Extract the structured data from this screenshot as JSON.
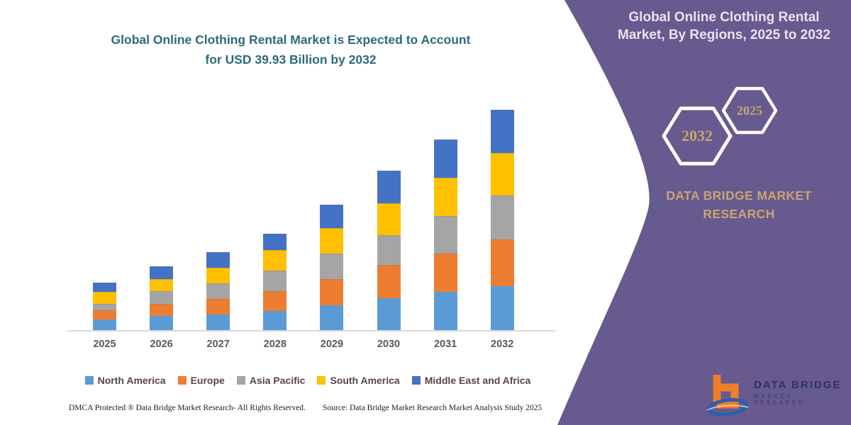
{
  "chart": {
    "title_lines": [
      "Global Online Clothing Rental Market is Expected to Account",
      "for USD 39.93 Billion by 2032"
    ]
  },
  "chart_data": {
    "type": "bar",
    "stacked": true,
    "title": "Global Online Clothing Rental Market is Expected to Account for USD 39.93 Billion by 2032",
    "unit": "USD Billion",
    "categories": [
      "2025",
      "2026",
      "2027",
      "2028",
      "2029",
      "2030",
      "2031",
      "2032"
    ],
    "series": [
      {
        "name": "North America",
        "color": "#5B9BD5",
        "values": [
          1.9,
          2.5,
          2.8,
          3.5,
          4.5,
          5.8,
          6.9,
          7.9
        ]
      },
      {
        "name": "Europe",
        "color": "#ED7D31",
        "values": [
          1.7,
          2.2,
          2.9,
          3.5,
          4.7,
          6.0,
          6.9,
          8.5
        ]
      },
      {
        "name": "Asia Pacific",
        "color": "#A5A5A5",
        "values": [
          1.2,
          2.3,
          2.8,
          3.8,
          4.6,
          5.4,
          6.9,
          8.0
        ]
      },
      {
        "name": "South America",
        "color": "#FFC000",
        "values": [
          2.1,
          2.2,
          2.8,
          3.7,
          4.7,
          5.8,
          6.9,
          7.6
        ]
      },
      {
        "name": "Middle East and Africa",
        "color": "#4472C4",
        "values": [
          1.7,
          2.3,
          2.8,
          3.0,
          4.2,
          5.8,
          6.9,
          7.9
        ]
      }
    ],
    "totals_estimated": [
      8.6,
      11.5,
      14.1,
      17.5,
      22.7,
      28.8,
      34.5,
      39.93
    ],
    "ylim": [
      0,
      40
    ],
    "grid": false,
    "y_axis_shown": false,
    "legend_position": "bottom",
    "axis_label_color": "#595959",
    "legend_text_color": "#564741"
  },
  "footer": {
    "dmca": "DMCA Protected ® Data Bridge Market Research-  All Rights Reserved.",
    "source": "Source: Data Bridge Market Research  Market Analysis Study 2025"
  },
  "side_panel": {
    "title_lines": [
      "Global Online Clothing Rental",
      "Market, By Regions, 2025 to 2032"
    ],
    "hexagon_large_label": "2032",
    "hexagon_small_label": "2025",
    "brand_lines": [
      "DATA BRIDGE MARKET",
      "RESEARCH"
    ],
    "logo": {
      "line1": "DATA BRIDGE",
      "line2": "MARKET RESEARCH"
    },
    "colors": {
      "background": "#665a8e",
      "accent_gold": "#c8a472",
      "title_text": "#e8e3f2",
      "hex_border": "#ffffff"
    }
  }
}
